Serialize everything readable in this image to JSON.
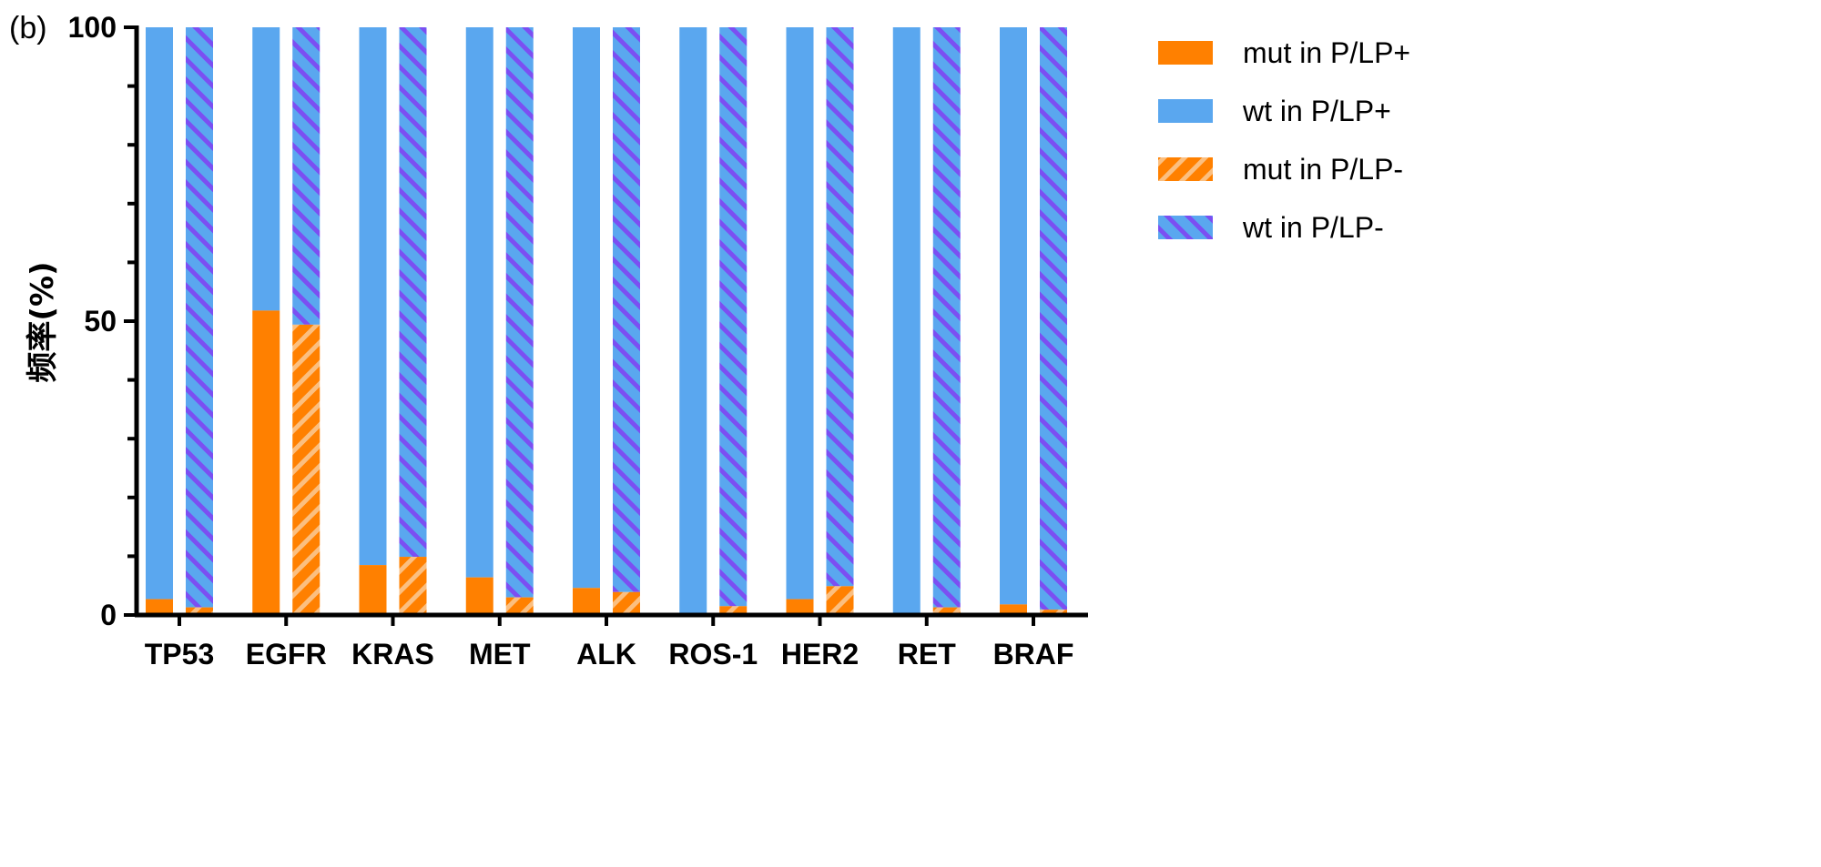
{
  "panel_label": "(b)",
  "colors": {
    "mut": "#ff8000",
    "wt": "#5aa7ef",
    "stripe_mut": "#fbbf80",
    "stripe_wt": "#7b4ff2"
  },
  "chart_data": {
    "type": "bar",
    "stacked": true,
    "grouped": true,
    "title": "",
    "xlabel": "",
    "ylabel": "频率(%)",
    "ylim": [
      0,
      100
    ],
    "y_ticks": [
      "0",
      "50",
      "100"
    ],
    "legend_position": "top-right",
    "grid": false,
    "categories": [
      "TP53",
      "EGFR",
      "KRAS",
      "MET",
      "ALK",
      "ROS-1",
      "HER2",
      "RET",
      "BRAF"
    ],
    "series": [
      {
        "name": "mut in P/LP+",
        "group": "P/LP+",
        "pattern": "solid",
        "color": "#ff8000",
        "values": [
          2.7,
          51.8,
          8.5,
          6.4,
          4.6,
          0,
          2.7,
          0,
          1.8
        ]
      },
      {
        "name": "wt in P/LP+",
        "group": "P/LP+",
        "pattern": "solid",
        "color": "#5aa7ef",
        "values": [
          97.3,
          48.2,
          91.5,
          93.6,
          95.4,
          100,
          97.3,
          100,
          98.2
        ]
      },
      {
        "name": "mut in P/LP-",
        "group": "P/LP-",
        "pattern": "stripe",
        "color": "#ff8000",
        "values": [
          1.3,
          49.4,
          9.9,
          3.0,
          3.9,
          1.5,
          4.9,
          1.3,
          0.9
        ]
      },
      {
        "name": "wt in P/LP-",
        "group": "P/LP-",
        "pattern": "stripe",
        "color": "#5aa7ef",
        "values": [
          98.7,
          50.6,
          90.1,
          97.0,
          96.1,
          98.5,
          95.1,
          98.7,
          99.1
        ]
      }
    ]
  }
}
